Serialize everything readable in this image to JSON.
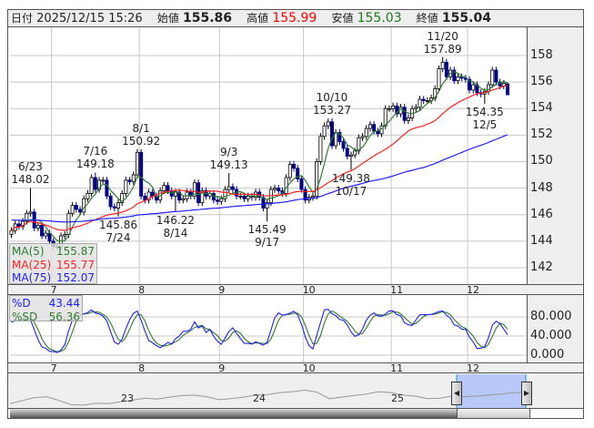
{
  "header": {
    "date_label": "日付",
    "datetime": "2025/12/15 15:26",
    "open_label": "始値",
    "open": "155.86",
    "high_label": "高値",
    "high": "155.99",
    "low_label": "安値",
    "low": "155.03",
    "close_label": "終値",
    "close": "155.04"
  },
  "colors": {
    "up_fill": "#ffffff",
    "down_fill": "#00008b",
    "ma5": "#2e7d2e",
    "ma25": "#ff2020",
    "ma75": "#2020ff",
    "stoch_d": "#2020ff",
    "stoch_sd": "#2e7d2e",
    "high_text": "#ff0000",
    "low_text": "#1a7a1a",
    "navigator_selection": "#b8c8f8"
  },
  "ma_legend": [
    {
      "label": "MA(5)",
      "value": "155.87",
      "color": "#2e7d2e"
    },
    {
      "label": "MA(25)",
      "value": "155.77",
      "color": "#ff2020"
    },
    {
      "label": "MA(75)",
      "value": "152.07",
      "color": "#2020ff"
    }
  ],
  "stoch_legend": [
    {
      "label": "%D",
      "value": "43.44",
      "color": "#2020ff"
    },
    {
      "label": "%SD",
      "value": "56.36",
      "color": "#2e7d2e"
    }
  ],
  "month_labels": [
    "7",
    "8",
    "9",
    "10",
    "11",
    "12"
  ],
  "year_labels": [
    "23",
    "24",
    "25"
  ],
  "chart_data": [
    {
      "type": "candlestick",
      "ylim": [
        141,
        160
      ],
      "yticks": [
        "158",
        "156",
        "154",
        "152",
        "150",
        "148",
        "146",
        "144",
        "142"
      ],
      "grid": true,
      "series": [
        {
          "name": "MA(5)"
        },
        {
          "name": "MA(25)"
        },
        {
          "name": "MA(75)"
        }
      ],
      "closes": [
        [
          "6/16",
          144.8
        ],
        [
          "6/17",
          145.3
        ],
        [
          "6/18",
          145.1
        ],
        [
          "6/19",
          145.5
        ],
        [
          "6/20",
          146.1
        ],
        [
          "6/23",
          146.2
        ],
        [
          "6/24",
          145.0
        ],
        [
          "6/25",
          145.2
        ],
        [
          "6/26",
          144.4
        ],
        [
          "6/27",
          144.6
        ],
        [
          "6/30",
          144.0
        ],
        [
          "7/1",
          143.6
        ],
        [
          "7/2",
          143.6
        ],
        [
          "7/3",
          144.4
        ],
        [
          "7/4",
          144.5
        ],
        [
          "7/7",
          146.1
        ],
        [
          "7/8",
          146.7
        ],
        [
          "7/9",
          146.4
        ],
        [
          "7/10",
          146.2
        ],
        [
          "7/11",
          147.2
        ],
        [
          "7/14",
          147.6
        ],
        [
          "7/15",
          148.8
        ],
        [
          "7/16",
          147.9
        ],
        [
          "7/17",
          148.6
        ],
        [
          "7/18",
          148.6
        ],
        [
          "7/21",
          147.4
        ],
        [
          "7/22",
          146.6
        ],
        [
          "7/23",
          146.5
        ],
        [
          "7/24",
          146.9
        ],
        [
          "7/25",
          147.6
        ],
        [
          "7/28",
          148.6
        ],
        [
          "7/29",
          148.5
        ],
        [
          "7/30",
          149.0
        ],
        [
          "7/31",
          150.7
        ],
        [
          "8/1",
          147.4
        ],
        [
          "8/4",
          147.1
        ],
        [
          "8/5",
          147.7
        ],
        [
          "8/6",
          147.4
        ],
        [
          "8/7",
          147.1
        ],
        [
          "8/8",
          147.8
        ],
        [
          "8/11",
          148.2
        ],
        [
          "8/12",
          147.8
        ],
        [
          "8/13",
          147.4
        ],
        [
          "8/14",
          147.7
        ],
        [
          "8/15",
          147.1
        ],
        [
          "8/18",
          147.2
        ],
        [
          "8/19",
          147.7
        ],
        [
          "8/20",
          147.4
        ],
        [
          "8/21",
          148.4
        ],
        [
          "8/22",
          146.9
        ],
        [
          "8/25",
          147.8
        ],
        [
          "8/26",
          147.4
        ],
        [
          "8/27",
          147.6
        ],
        [
          "8/28",
          147.1
        ],
        [
          "8/29",
          147.0
        ],
        [
          "9/1",
          147.2
        ],
        [
          "9/2",
          147.9
        ],
        [
          "9/3",
          148.1
        ],
        [
          "9/4",
          147.9
        ],
        [
          "9/5",
          147.4
        ],
        [
          "9/8",
          147.4
        ],
        [
          "9/9",
          147.2
        ],
        [
          "9/10",
          147.4
        ],
        [
          "9/11",
          147.3
        ],
        [
          "9/12",
          147.7
        ],
        [
          "9/15",
          147.3
        ],
        [
          "9/16",
          146.5
        ],
        [
          "9/17",
          146.9
        ],
        [
          "9/18",
          147.9
        ],
        [
          "9/19",
          148.0
        ],
        [
          "9/22",
          147.8
        ],
        [
          "9/23",
          147.6
        ],
        [
          "9/24",
          148.8
        ],
        [
          "9/25",
          149.8
        ],
        [
          "9/26",
          149.5
        ],
        [
          "9/29",
          148.7
        ],
        [
          "9/30",
          147.9
        ],
        [
          "10/1",
          147.1
        ],
        [
          "10/2",
          147.3
        ],
        [
          "10/3",
          147.4
        ],
        [
          "10/6",
          150.0
        ],
        [
          "10/7",
          151.9
        ],
        [
          "10/8",
          152.7
        ],
        [
          "10/9",
          153.0
        ],
        [
          "10/10",
          151.2
        ],
        [
          "10/13",
          152.2
        ],
        [
          "10/14",
          151.5
        ],
        [
          "10/15",
          151.0
        ],
        [
          "10/16",
          150.4
        ],
        [
          "10/17",
          150.5
        ],
        [
          "10/20",
          150.8
        ],
        [
          "10/21",
          151.8
        ],
        [
          "10/22",
          151.9
        ],
        [
          "10/23",
          152.5
        ],
        [
          "10/24",
          152.8
        ],
        [
          "10/27",
          152.3
        ],
        [
          "10/28",
          152.1
        ],
        [
          "10/29",
          152.7
        ],
        [
          "10/30",
          154.0
        ],
        [
          "10/31",
          154.0
        ],
        [
          "11/3",
          154.2
        ],
        [
          "11/4",
          153.6
        ],
        [
          "11/5",
          154.1
        ],
        [
          "11/6",
          153.1
        ],
        [
          "11/7",
          153.3
        ],
        [
          "11/10",
          154.0
        ],
        [
          "11/11",
          154.1
        ],
        [
          "11/12",
          154.7
        ],
        [
          "11/13",
          154.6
        ],
        [
          "11/14",
          154.6
        ],
        [
          "11/17",
          154.8
        ],
        [
          "11/18",
          155.5
        ],
        [
          "11/19",
          157.0
        ],
        [
          "11/20",
          157.5
        ],
        [
          "11/21",
          156.4
        ],
        [
          "11/24",
          156.9
        ],
        [
          "11/25",
          156.1
        ],
        [
          "11/26",
          156.4
        ],
        [
          "11/27",
          156.3
        ],
        [
          "11/28",
          156.2
        ],
        [
          "12/1",
          155.4
        ],
        [
          "12/2",
          155.8
        ],
        [
          "12/3",
          155.2
        ],
        [
          "12/4",
          155.1
        ],
        [
          "12/5",
          155.3
        ],
        [
          "12/8",
          155.8
        ],
        [
          "12/9",
          156.9
        ],
        [
          "12/10",
          156.0
        ],
        [
          "12/11",
          155.7
        ],
        [
          "12/12",
          155.9
        ],
        [
          "12/15",
          155.04
        ]
      ],
      "ohlc_overrides": {
        "6/23": {
          "h": 148.02
        },
        "7/16": {
          "h": 149.18
        },
        "7/24": {
          "l": 145.86
        },
        "8/1": {
          "o": 150.7,
          "h": 150.92
        },
        "8/14": {
          "l": 146.22
        },
        "9/3": {
          "h": 149.13
        },
        "9/17": {
          "l": 145.49
        },
        "10/10": {
          "h": 153.27
        },
        "10/17": {
          "l": 149.38
        },
        "11/20": {
          "h": 157.89
        },
        "12/5": {
          "l": 154.35
        },
        "12/15": {
          "o": 155.86,
          "h": 155.99,
          "l": 155.03
        }
      },
      "annotations": [
        {
          "date": "6/23",
          "value": "148.02",
          "kind": "high"
        },
        {
          "date": "7/16",
          "value": "149.18",
          "kind": "high"
        },
        {
          "date": "7/24",
          "value": "145.86",
          "kind": "low"
        },
        {
          "date": "8/1",
          "value": "150.92",
          "kind": "high"
        },
        {
          "date": "8/14",
          "value": "146.22",
          "kind": "low"
        },
        {
          "date": "9/3",
          "value": "149.13",
          "kind": "high"
        },
        {
          "date": "9/17",
          "value": "145.49",
          "kind": "low"
        },
        {
          "date": "10/10",
          "value": "153.27",
          "kind": "high"
        },
        {
          "date": "10/17",
          "value": "149.38",
          "kind": "low"
        },
        {
          "date": "11/20",
          "value": "157.89",
          "kind": "high"
        },
        {
          "date": "12/5",
          "value": "154.35",
          "kind": "low"
        }
      ]
    },
    {
      "type": "line",
      "ylim": [
        0,
        100
      ],
      "yticks": [
        "80.000",
        "40.000",
        "0.000"
      ],
      "series": [
        {
          "name": "%D"
        },
        {
          "name": "%SD"
        }
      ]
    },
    {
      "type": "area",
      "note_values": "navigator overview",
      "values": [
        133,
        139,
        145,
        147,
        139,
        131,
        130,
        134,
        133,
        137,
        140,
        144,
        142,
        146,
        149,
        150,
        147,
        141,
        143,
        146,
        150,
        151,
        155,
        157,
        160,
        156,
        143,
        146,
        149,
        152,
        157,
        155,
        150,
        148,
        143,
        144,
        148,
        147,
        148,
        150,
        152,
        155,
        155
      ]
    }
  ]
}
